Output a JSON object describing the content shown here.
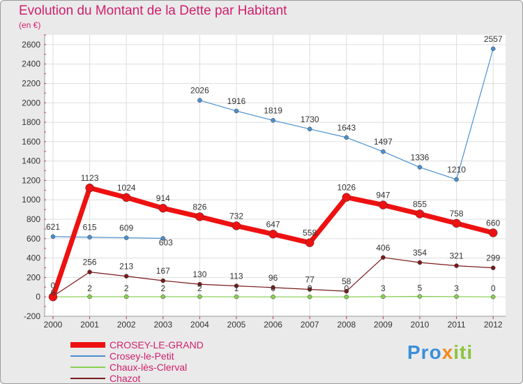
{
  "chart_data": {
    "type": "line",
    "title": "Evolution du Montant de la Dette par Habitant",
    "unit": "(en €)",
    "x": [
      "2000",
      "2001",
      "2002",
      "2003",
      "2004",
      "2005",
      "2006",
      "2007",
      "2008",
      "2009",
      "2010",
      "2011",
      "2012"
    ],
    "ylim": [
      -200,
      2700
    ],
    "yticks": [
      -200,
      0,
      200,
      400,
      600,
      800,
      1000,
      1200,
      1400,
      1600,
      1800,
      2000,
      2200,
      2400,
      2600
    ],
    "grid": true,
    "series": [
      {
        "name": "CROSEY-LE-GRAND",
        "color": "#ee1111",
        "values": [
          0,
          1123,
          1024,
          914,
          826,
          732,
          647,
          558,
          1026,
          947,
          855,
          758,
          660
        ]
      },
      {
        "name": "Crosey-le-Petit",
        "color": "#4a90d0",
        "values": [
          621,
          615,
          609,
          603,
          2026,
          1916,
          1819,
          1730,
          1643,
          1497,
          1336,
          1210,
          2557
        ]
      },
      {
        "name": "Chaux-lès-Clerval",
        "color": "#88d050",
        "values": [
          0,
          2,
          2,
          2,
          2,
          1,
          0,
          0,
          0,
          3,
          5,
          3,
          0
        ]
      },
      {
        "name": "Chazot",
        "color": "#7a1a1a",
        "values": [
          6,
          256,
          213,
          167,
          130,
          113,
          96,
          77,
          58,
          406,
          354,
          321,
          299
        ]
      }
    ]
  },
  "legend": [
    "CROSEY-LE-GRAND",
    "Crosey-le-Petit",
    "Chaux-lès-Clerval",
    "Chazot"
  ],
  "brand": {
    "part1": "Pro",
    "part2": "x",
    "part3": "iti"
  }
}
